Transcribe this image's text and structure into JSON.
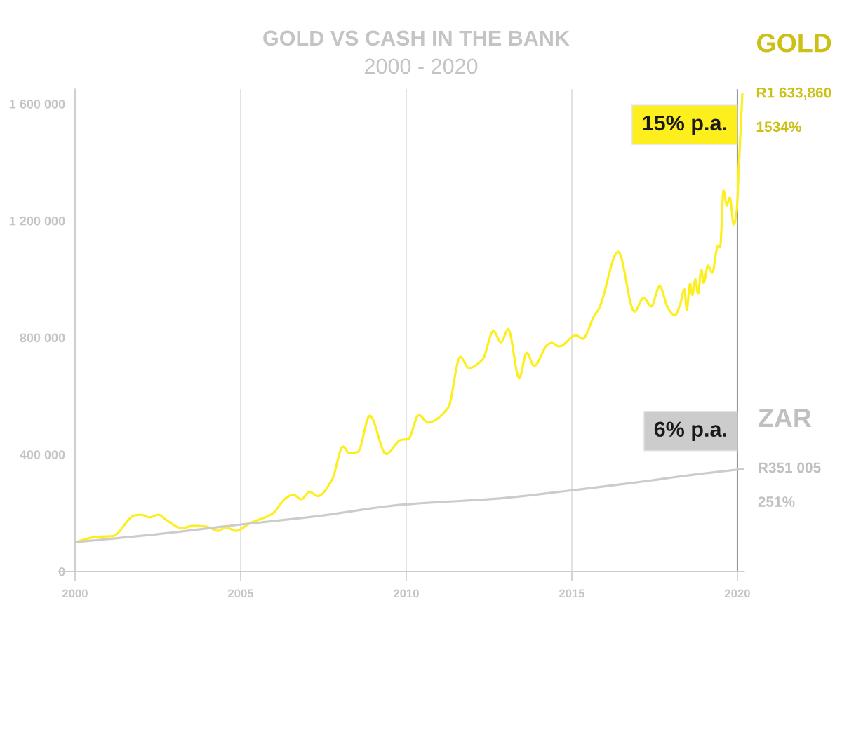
{
  "chart_data": {
    "type": "line",
    "title": "GOLD VS CASH IN THE BANK",
    "subtitle": "2000 - 2020",
    "series": [
      {
        "name": "GOLD",
        "color": "#fdee1d",
        "x": [
          2000,
          2000.64,
          2001.14,
          2001.8,
          2001.99,
          2002.25,
          2002.51,
          2002.78,
          2003.22,
          2003.55,
          2003.94,
          2004.32,
          2004.56,
          2004.85,
          2005.3,
          2005.95,
          2006.4,
          2006.59,
          2006.83,
          2007.08,
          2007.33,
          2007.76,
          2008.09,
          2008.28,
          2008.54,
          2008.9,
          2009.39,
          2009.84,
          2010.06,
          2010.38,
          2010.65,
          2011.27,
          2011.63,
          2011.89,
          2012.31,
          2012.63,
          2012.86,
          2013.08,
          2013.41,
          2013.64,
          2013.86,
          2014.26,
          2014.39,
          2014.62,
          2015.13,
          2015.33,
          2015.66,
          2015.83,
          2016.4,
          2016.89,
          2017.17,
          2017.4,
          2017.65,
          2017.9,
          2018.11,
          2018.27,
          2018.4,
          2018.47,
          2018.57,
          2018.64,
          2018.73,
          2018.81,
          2018.91,
          2018.98,
          2019.11,
          2019.24,
          2019.41,
          2019.48,
          2019.58,
          2019.68,
          2019.77,
          2019.89,
          2019.98,
          2020.04,
          2020.15
        ],
        "values": [
          100000,
          118000,
          121000,
          192000,
          194000,
          185000,
          194000,
          174000,
          148000,
          156000,
          154000,
          139000,
          151000,
          139000,
          166000,
          197000,
          254000,
          262000,
          247000,
          272000,
          258000,
          314000,
          427000,
          405000,
          409000,
          533000,
          402000,
          450000,
          453000,
          535000,
          510000,
          561000,
          734000,
          696000,
          726000,
          823000,
          784000,
          829000,
          662000,
          748000,
          703000,
          775000,
          782000,
          770000,
          808000,
          796000,
          871000,
          902000,
          1094000,
          889000,
          936000,
          907000,
          976000,
          902000,
          876000,
          914000,
          965000,
          896000,
          984000,
          946000,
          999000,
          950000,
          1032000,
          987000,
          1046000,
          1022000,
          1113000,
          1112000,
          1303000,
          1252000,
          1279000,
          1187000,
          1235000,
          1379000,
          1633860
        ]
      },
      {
        "name": "ZAR",
        "color": "#cccccc",
        "x": [
          2000,
          2002.45,
          2004.65,
          2007.37,
          2009.84,
          2012.82,
          2014.97,
          2017.11,
          2018.54,
          2020.2
        ],
        "values": [
          100000,
          127000,
          156000,
          190000,
          228000,
          250000,
          277000,
          307000,
          329000,
          351005
        ]
      }
    ],
    "xlim": [
      1999.5,
      2020.2
    ],
    "xticks": [
      2000,
      2005,
      2010,
      2015,
      2020
    ],
    "ylim": [
      0,
      1650000
    ],
    "yticks": [
      0,
      {
        "value": 400000,
        "label": "400 000"
      },
      {
        "value": 800000,
        "label": "800 000"
      },
      {
        "value": 1200000,
        "label": "1 200 000"
      },
      {
        "value": 1600000,
        "label": "1 600 000"
      }
    ],
    "grid": "x",
    "ref_lines": [
      {
        "axis": "x",
        "value": 2020,
        "color": "#999999"
      }
    ],
    "annotations": [
      "15% p.a.",
      "6% p.a.",
      "R1 633,860",
      "1534%",
      "R351 005",
      "251%"
    ]
  }
}
